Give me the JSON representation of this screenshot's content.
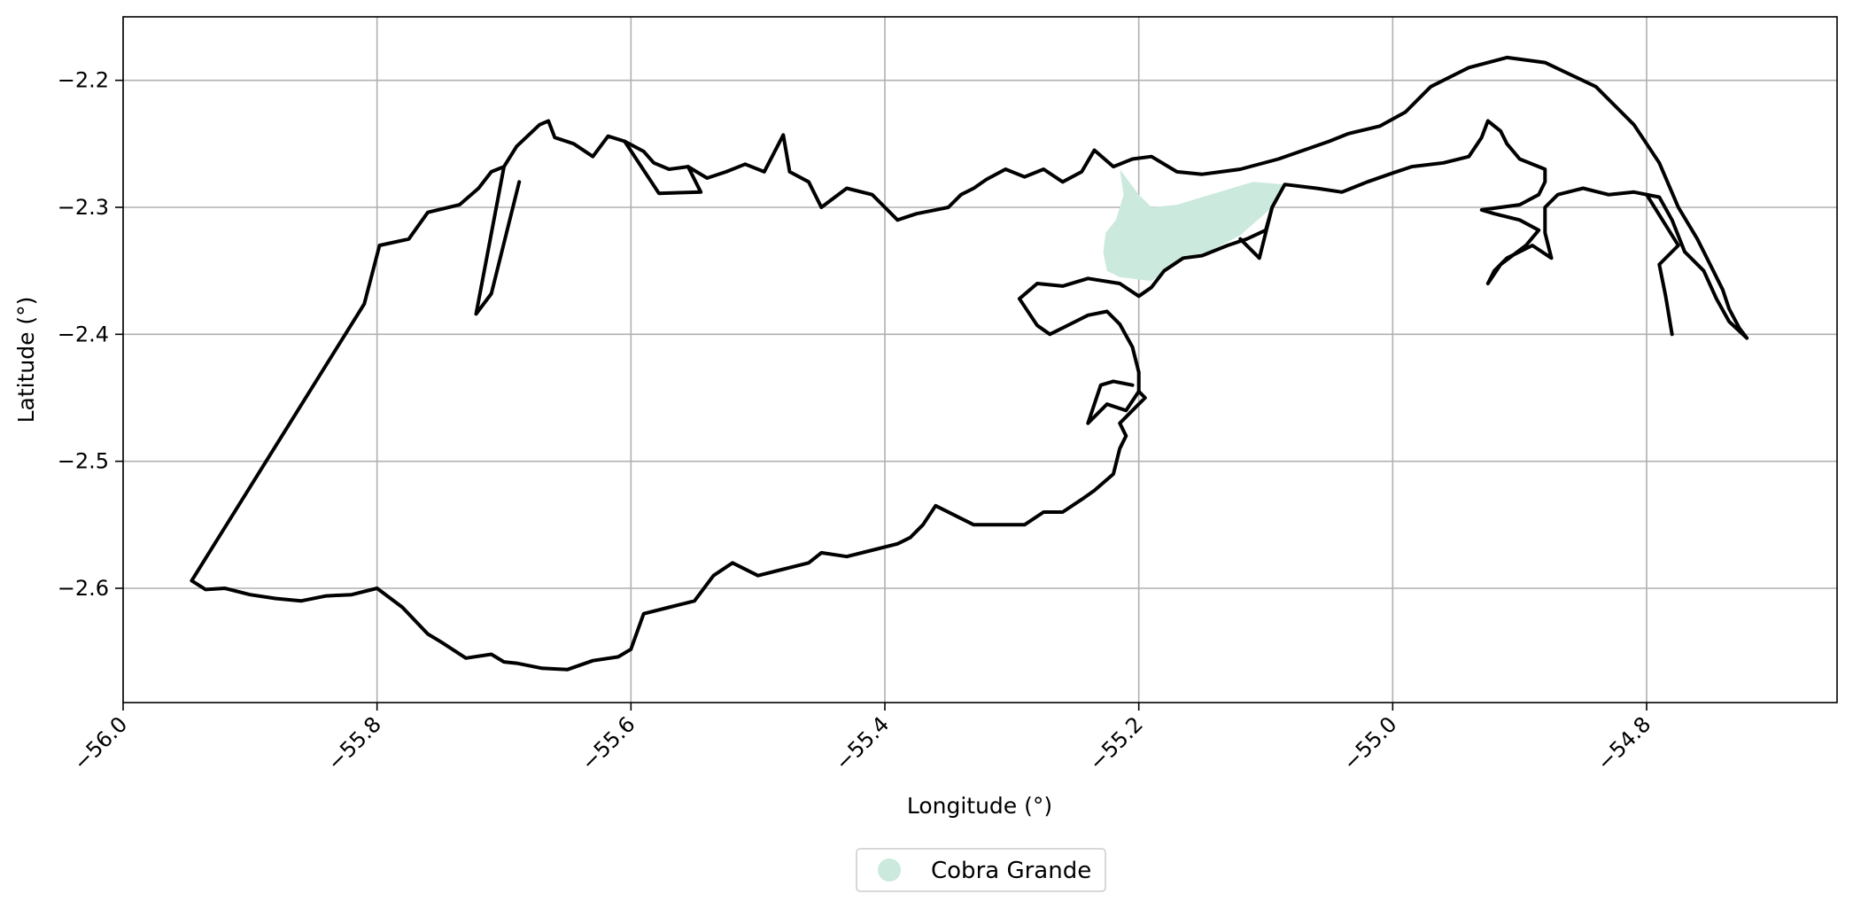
{
  "map": {
    "xlabel": "Longitude (°)",
    "ylabel": "Latitude (°)",
    "grid": true,
    "legend_position": "bottom-center",
    "x_ticks": [
      "−56.0",
      "−55.8",
      "−55.6",
      "−55.4",
      "−55.2",
      "−55.0",
      "−54.8"
    ],
    "y_ticks": [
      "−2.2",
      "−2.3",
      "−2.4",
      "−2.5",
      "−2.6"
    ],
    "legend": [
      {
        "label": "Cobra Grande",
        "color": "#cbe9dc"
      }
    ]
  },
  "chart_data": {
    "type": "map",
    "xlabel": "Longitude (°)",
    "ylabel": "Latitude (°)",
    "xlim": [
      -56.0,
      -54.65
    ],
    "ylim": [
      -2.69,
      -2.15
    ],
    "x_tick_values": [
      -56.0,
      -55.8,
      -55.6,
      -55.4,
      -55.2,
      -55.0,
      -54.8
    ],
    "y_tick_values": [
      -2.2,
      -2.3,
      -2.4,
      -2.5,
      -2.6
    ],
    "outline_color": "#000000",
    "fill_color": "#cbe9dc",
    "highlighted_region": "Cobra Grande",
    "outline": [
      [
        -55.946,
        -2.594
      ],
      [
        -55.81,
        -2.376
      ],
      [
        -55.798,
        -2.33
      ],
      [
        -55.775,
        -2.325
      ],
      [
        -55.76,
        -2.304
      ],
      [
        -55.735,
        -2.298
      ],
      [
        -55.72,
        -2.285
      ],
      [
        -55.71,
        -2.272
      ],
      [
        -55.7,
        -2.268
      ],
      [
        -55.69,
        -2.252
      ],
      [
        -55.672,
        -2.235
      ],
      [
        -55.665,
        -2.232
      ],
      [
        -55.66,
        -2.245
      ],
      [
        -55.645,
        -2.25
      ],
      [
        -55.63,
        -2.26
      ],
      [
        -55.618,
        -2.244
      ],
      [
        -55.605,
        -2.248
      ],
      [
        -55.59,
        -2.256
      ],
      [
        -55.582,
        -2.265
      ],
      [
        -55.57,
        -2.27
      ],
      [
        -55.555,
        -2.268
      ],
      [
        -55.54,
        -2.277
      ],
      [
        -55.525,
        -2.272
      ],
      [
        -55.51,
        -2.266
      ],
      [
        -55.495,
        -2.272
      ],
      [
        -55.48,
        -2.243
      ],
      [
        -55.475,
        -2.272
      ],
      [
        -55.46,
        -2.28
      ],
      [
        -55.45,
        -2.3
      ],
      [
        -55.43,
        -2.285
      ],
      [
        -55.41,
        -2.29
      ],
      [
        -55.4,
        -2.3
      ],
      [
        -55.39,
        -2.31
      ],
      [
        -55.375,
        -2.305
      ],
      [
        -55.36,
        -2.302
      ],
      [
        -55.35,
        -2.3
      ],
      [
        -55.34,
        -2.29
      ],
      [
        -55.33,
        -2.285
      ],
      [
        -55.32,
        -2.278
      ],
      [
        -55.305,
        -2.27
      ],
      [
        -55.29,
        -2.276
      ],
      [
        -55.275,
        -2.27
      ],
      [
        -55.26,
        -2.28
      ],
      [
        -55.245,
        -2.272
      ],
      [
        -55.235,
        -2.255
      ],
      [
        -55.22,
        -2.268
      ],
      [
        -55.205,
        -2.262
      ],
      [
        -55.19,
        -2.26
      ],
      [
        -55.17,
        -2.272
      ],
      [
        -55.15,
        -2.274
      ],
      [
        -55.12,
        -2.27
      ],
      [
        -55.09,
        -2.262
      ],
      [
        -55.07,
        -2.255
      ],
      [
        -55.05,
        -2.248
      ],
      [
        -55.035,
        -2.242
      ],
      [
        -55.01,
        -2.236
      ],
      [
        -54.99,
        -2.225
      ],
      [
        -54.97,
        -2.205
      ],
      [
        -54.94,
        -2.19
      ],
      [
        -54.91,
        -2.182
      ],
      [
        -54.88,
        -2.186
      ],
      [
        -54.84,
        -2.205
      ],
      [
        -54.81,
        -2.235
      ],
      [
        -54.79,
        -2.265
      ],
      [
        -54.775,
        -2.3
      ],
      [
        -54.76,
        -2.325
      ],
      [
        -54.75,
        -2.345
      ],
      [
        -54.74,
        -2.365
      ],
      [
        -54.735,
        -2.38
      ],
      [
        -54.727,
        -2.395
      ],
      [
        -54.721,
        -2.403
      ],
      [
        -54.735,
        -2.39
      ],
      [
        -54.745,
        -2.372
      ],
      [
        -54.755,
        -2.35
      ],
      [
        -54.77,
        -2.335
      ],
      [
        -54.78,
        -2.31
      ],
      [
        -54.79,
        -2.292
      ],
      [
        -54.81,
        -2.288
      ],
      [
        -54.83,
        -2.29
      ],
      [
        -54.85,
        -2.285
      ],
      [
        -54.87,
        -2.29
      ],
      [
        -54.88,
        -2.3
      ],
      [
        -54.88,
        -2.32
      ],
      [
        -54.875,
        -2.34
      ],
      [
        -54.89,
        -2.33
      ],
      [
        -54.91,
        -2.34
      ],
      [
        -54.92,
        -2.35
      ],
      [
        -54.925,
        -2.36
      ],
      [
        -54.915,
        -2.345
      ],
      [
        -54.895,
        -2.33
      ],
      [
        -54.885,
        -2.318
      ],
      [
        -54.9,
        -2.31
      ],
      [
        -54.92,
        -2.305
      ],
      [
        -54.93,
        -2.302
      ],
      [
        -54.915,
        -2.3
      ],
      [
        -54.9,
        -2.298
      ],
      [
        -54.885,
        -2.29
      ],
      [
        -54.88,
        -2.28
      ],
      [
        -54.88,
        -2.27
      ],
      [
        -54.9,
        -2.262
      ],
      [
        -54.91,
        -2.25
      ],
      [
        -54.915,
        -2.24
      ],
      [
        -54.925,
        -2.232
      ],
      [
        -54.93,
        -2.245
      ],
      [
        -54.94,
        -2.26
      ],
      [
        -54.96,
        -2.265
      ],
      [
        -54.985,
        -2.268
      ],
      [
        -55.0,
        -2.273
      ],
      [
        -55.02,
        -2.28
      ],
      [
        -55.04,
        -2.288
      ],
      [
        -55.06,
        -2.285
      ],
      [
        -55.085,
        -2.282
      ],
      [
        -55.095,
        -2.3
      ],
      [
        -55.1,
        -2.318
      ],
      [
        -55.115,
        -2.325
      ],
      [
        -55.13,
        -2.33
      ],
      [
        -55.15,
        -2.338
      ],
      [
        -55.165,
        -2.34
      ],
      [
        -55.18,
        -2.35
      ],
      [
        -55.19,
        -2.363
      ],
      [
        -55.2,
        -2.37
      ],
      [
        -55.215,
        -2.36
      ],
      [
        -55.24,
        -2.356
      ],
      [
        -55.26,
        -2.362
      ],
      [
        -55.28,
        -2.36
      ],
      [
        -55.294,
        -2.372
      ],
      [
        -55.28,
        -2.393
      ],
      [
        -55.27,
        -2.4
      ],
      [
        -55.25,
        -2.39
      ],
      [
        -55.24,
        -2.385
      ],
      [
        -55.225,
        -2.382
      ],
      [
        -55.215,
        -2.392
      ],
      [
        -55.205,
        -2.41
      ],
      [
        -55.2,
        -2.43
      ],
      [
        -55.2,
        -2.445
      ],
      [
        -55.195,
        -2.45
      ],
      [
        -55.205,
        -2.46
      ],
      [
        -55.215,
        -2.47
      ],
      [
        -55.21,
        -2.48
      ],
      [
        -55.215,
        -2.49
      ],
      [
        -55.22,
        -2.51
      ],
      [
        -55.235,
        -2.523
      ],
      [
        -55.245,
        -2.53
      ],
      [
        -55.26,
        -2.54
      ],
      [
        -55.275,
        -2.54
      ],
      [
        -55.29,
        -2.55
      ],
      [
        -55.31,
        -2.55
      ],
      [
        -55.33,
        -2.55
      ],
      [
        -55.34,
        -2.545
      ],
      [
        -55.36,
        -2.535
      ],
      [
        -55.37,
        -2.55
      ],
      [
        -55.38,
        -2.56
      ],
      [
        -55.39,
        -2.565
      ],
      [
        -55.41,
        -2.57
      ],
      [
        -55.43,
        -2.575
      ],
      [
        -55.45,
        -2.572
      ],
      [
        -55.46,
        -2.58
      ],
      [
        -55.48,
        -2.585
      ],
      [
        -55.5,
        -2.59
      ],
      [
        -55.52,
        -2.58
      ],
      [
        -55.535,
        -2.59
      ],
      [
        -55.55,
        -2.61
      ],
      [
        -55.57,
        -2.615
      ],
      [
        -55.59,
        -2.62
      ],
      [
        -55.6,
        -2.648
      ],
      [
        -55.61,
        -2.654
      ],
      [
        -55.63,
        -2.657
      ],
      [
        -55.65,
        -2.664
      ],
      [
        -55.67,
        -2.663
      ],
      [
        -55.69,
        -2.659
      ],
      [
        -55.7,
        -2.658
      ],
      [
        -55.71,
        -2.652
      ],
      [
        -55.73,
        -2.655
      ],
      [
        -55.75,
        -2.642
      ],
      [
        -55.76,
        -2.636
      ],
      [
        -55.78,
        -2.615
      ],
      [
        -55.8,
        -2.6
      ],
      [
        -55.82,
        -2.605
      ],
      [
        -55.84,
        -2.606
      ],
      [
        -55.86,
        -2.61
      ],
      [
        -55.88,
        -2.608
      ],
      [
        -55.9,
        -2.605
      ],
      [
        -55.92,
        -2.6
      ],
      [
        -55.935,
        -2.601
      ],
      [
        -55.946,
        -2.594
      ]
    ],
    "inner_features": [
      [
        [
          -55.7,
          -2.268
        ],
        [
          -55.722,
          -2.384
        ],
        [
          -55.71,
          -2.368
        ],
        [
          -55.688,
          -2.28
        ]
      ],
      [
        [
          -55.605,
          -2.248
        ],
        [
          -55.578,
          -2.289
        ],
        [
          -55.545,
          -2.288
        ],
        [
          -55.555,
          -2.268
        ]
      ],
      [
        [
          -55.2,
          -2.445
        ],
        [
          -55.21,
          -2.46
        ],
        [
          -55.225,
          -2.455
        ],
        [
          -55.24,
          -2.47
        ],
        [
          -55.23,
          -2.44
        ],
        [
          -55.22,
          -2.437
        ],
        [
          -55.205,
          -2.44
        ]
      ],
      [
        [
          -55.095,
          -2.3
        ],
        [
          -55.105,
          -2.34
        ],
        [
          -55.12,
          -2.325
        ]
      ],
      [
        [
          -54.8,
          -2.29
        ],
        [
          -54.775,
          -2.33
        ],
        [
          -54.79,
          -2.345
        ],
        [
          -54.785,
          -2.37
        ],
        [
          -54.78,
          -2.4
        ]
      ]
    ],
    "highlight_polygon": [
      [
        -55.215,
        -2.27
      ],
      [
        -55.2,
        -2.29
      ],
      [
        -55.19,
        -2.3
      ],
      [
        -55.17,
        -2.298
      ],
      [
        -55.15,
        -2.292
      ],
      [
        -55.13,
        -2.286
      ],
      [
        -55.11,
        -2.28
      ],
      [
        -55.085,
        -2.282
      ],
      [
        -55.095,
        -2.3
      ],
      [
        -55.12,
        -2.322
      ],
      [
        -55.145,
        -2.335
      ],
      [
        -55.16,
        -2.338
      ],
      [
        -55.175,
        -2.348
      ],
      [
        -55.19,
        -2.358
      ],
      [
        -55.215,
        -2.355
      ],
      [
        -55.225,
        -2.35
      ],
      [
        -55.228,
        -2.335
      ],
      [
        -55.226,
        -2.32
      ],
      [
        -55.218,
        -2.31
      ],
      [
        -55.212,
        -2.29
      ]
    ]
  }
}
